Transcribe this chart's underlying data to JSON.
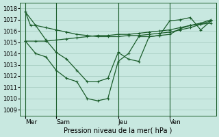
{
  "bg_color": "#c8e8e0",
  "grid_color": "#a0c8bc",
  "line_color": "#1a5c2a",
  "title": "Pression niveau de la mer( hPa )",
  "ylim": [
    1008.5,
    1018.5
  ],
  "yticks": [
    1009,
    1010,
    1011,
    1012,
    1013,
    1014,
    1015,
    1016,
    1017,
    1018
  ],
  "xlim": [
    -0.5,
    18.5
  ],
  "day_labels": [
    "Mer",
    "Sam",
    "Jeu",
    "Ven"
  ],
  "day_positions": [
    0,
    3,
    9,
    14
  ],
  "series": [
    {
      "x": [
        0,
        0.5,
        1,
        2,
        3,
        4,
        5,
        6,
        7,
        8,
        9,
        10,
        11,
        12,
        13,
        14,
        15,
        16,
        17,
        18
      ],
      "y": [
        1017.7,
        1016.5,
        1016.5,
        1016.3,
        1016.1,
        1015.9,
        1015.7,
        1015.6,
        1015.5,
        1015.5,
        1015.5,
        1015.6,
        1015.6,
        1015.7,
        1015.8,
        1015.9,
        1016.1,
        1016.3,
        1016.6,
        1016.9
      ]
    },
    {
      "x": [
        0,
        1,
        2,
        3,
        4,
        5,
        6,
        7,
        8,
        9,
        10,
        11,
        12,
        13,
        14,
        15,
        16,
        17,
        18
      ],
      "y": [
        1015.1,
        1015.1,
        1015.1,
        1015.2,
        1015.3,
        1015.4,
        1015.5,
        1015.6,
        1015.6,
        1015.7,
        1015.7,
        1015.8,
        1015.9,
        1016.0,
        1016.1,
        1016.3,
        1016.5,
        1016.7,
        1017.0
      ]
    },
    {
      "x": [
        0,
        1,
        2,
        3,
        4,
        5,
        6,
        7,
        8,
        9,
        10,
        11,
        12,
        13,
        14,
        15,
        16,
        17,
        18
      ],
      "y": [
        1015.1,
        1014.0,
        1013.7,
        1012.5,
        1011.8,
        1011.5,
        1010.0,
        1009.8,
        1010.0,
        1013.3,
        1014.0,
        1015.5,
        1015.5,
        1015.6,
        1015.7,
        1016.2,
        1016.5,
        1016.6,
        1016.7
      ]
    },
    {
      "x": [
        0,
        1,
        2,
        3,
        4,
        5,
        6,
        7,
        8,
        9,
        10,
        11,
        12,
        13,
        14,
        15,
        16,
        17,
        18
      ],
      "y": [
        1017.7,
        1016.5,
        1015.2,
        1014.1,
        1013.5,
        1012.5,
        1011.5,
        1011.5,
        1011.8,
        1014.1,
        1013.5,
        1013.3,
        1015.5,
        1015.6,
        1016.9,
        1017.0,
        1017.2,
        1016.1,
        1016.9
      ]
    }
  ]
}
